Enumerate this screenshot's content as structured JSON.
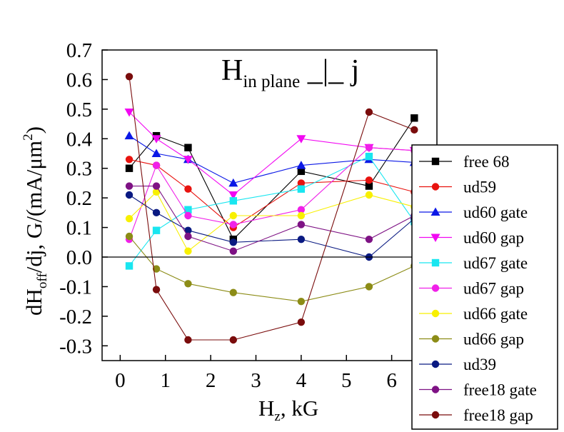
{
  "chart_data": {
    "type": "line",
    "xlabel": {
      "main": "H",
      "sub": "z",
      "tail": ", kG"
    },
    "ylabel": {
      "part1": "dH",
      "sub1": "off",
      "part2": "/dj, G/(mA/μm",
      "sup": "2",
      "part3": ")"
    },
    "title": {
      "main": "H",
      "sub": "in plane",
      "tail": " _|_ j"
    },
    "xlim": [
      -0.4,
      7.0
    ],
    "ylim": [
      -0.35,
      0.7
    ],
    "x_ticks": [
      0,
      1,
      2,
      3,
      4,
      5,
      6
    ],
    "x_tick_labels": [
      "0",
      "1",
      "2",
      "3",
      "4",
      "5",
      "6"
    ],
    "y_ticks": [
      -0.3,
      -0.2,
      -0.1,
      0.0,
      0.1,
      0.2,
      0.3,
      0.4,
      0.5,
      0.6,
      0.7
    ],
    "y_tick_labels": [
      "-0.3",
      "-0.2",
      "-0.1",
      "0.0",
      "0.1",
      "0.2",
      "0.3",
      "0.4",
      "0.5",
      "0.6",
      "0.7"
    ],
    "zero_line": true,
    "grid": false,
    "legend_position": "right",
    "series": [
      {
        "name": "free 68",
        "color": "#000000",
        "marker": "square",
        "points": [
          [
            0.2,
            0.3
          ],
          [
            0.8,
            0.41
          ],
          [
            1.5,
            0.37
          ],
          [
            2.5,
            0.06
          ],
          [
            4.0,
            0.29
          ],
          [
            5.5,
            0.24
          ],
          [
            6.5,
            0.47
          ]
        ]
      },
      {
        "name": "ud59",
        "color": "#e8130f",
        "marker": "circle",
        "points": [
          [
            0.2,
            0.33
          ],
          [
            0.8,
            0.31
          ],
          [
            1.5,
            0.23
          ],
          [
            2.5,
            0.1
          ],
          [
            4.0,
            0.25
          ],
          [
            5.5,
            0.26
          ],
          [
            6.5,
            0.22
          ]
        ]
      },
      {
        "name": "ud60 gate",
        "color": "#0b18e6",
        "marker": "triangle-up",
        "points": [
          [
            0.2,
            0.41
          ],
          [
            0.8,
            0.35
          ],
          [
            1.5,
            0.33
          ],
          [
            2.5,
            0.25
          ],
          [
            4.0,
            0.31
          ],
          [
            5.5,
            0.33
          ],
          [
            6.5,
            0.32
          ]
        ]
      },
      {
        "name": "ud60 gap",
        "color": "#f208f2",
        "marker": "triangle-down",
        "points": [
          [
            0.2,
            0.49
          ],
          [
            0.8,
            0.4
          ],
          [
            1.5,
            0.33
          ],
          [
            2.5,
            0.21
          ],
          [
            4.0,
            0.4
          ],
          [
            5.5,
            0.37
          ],
          [
            6.5,
            0.36
          ]
        ]
      },
      {
        "name": "ud67 gate",
        "color": "#19e6f0",
        "marker": "square",
        "points": [
          [
            0.2,
            -0.03
          ],
          [
            0.8,
            0.09
          ],
          [
            1.5,
            0.16
          ],
          [
            2.5,
            0.19
          ],
          [
            4.0,
            0.23
          ],
          [
            5.5,
            0.34
          ],
          [
            6.5,
            0.12
          ]
        ]
      },
      {
        "name": "ud67 gap",
        "color": "#f020e8",
        "marker": "circle",
        "points": [
          [
            0.2,
            0.06
          ],
          [
            0.8,
            0.31
          ],
          [
            1.5,
            0.14
          ],
          [
            2.5,
            0.11
          ],
          [
            4.0,
            0.16
          ],
          [
            5.5,
            0.37
          ],
          [
            6.5,
            0.36
          ]
        ]
      },
      {
        "name": "ud66 gate",
        "color": "#f8f000",
        "marker": "circle",
        "points": [
          [
            0.2,
            0.13
          ],
          [
            0.8,
            0.22
          ],
          [
            1.5,
            0.02
          ],
          [
            2.5,
            0.14
          ],
          [
            4.0,
            0.14
          ],
          [
            5.5,
            0.21
          ],
          [
            6.5,
            0.17
          ]
        ]
      },
      {
        "name": "ud66 gap",
        "color": "#8c8c16",
        "marker": "circle",
        "points": [
          [
            0.2,
            0.07
          ],
          [
            0.8,
            -0.04
          ],
          [
            1.5,
            -0.09
          ],
          [
            2.5,
            -0.12
          ],
          [
            4.0,
            -0.15
          ],
          [
            5.5,
            -0.1
          ],
          [
            6.5,
            -0.03
          ]
        ]
      },
      {
        "name": "ud39",
        "color": "#0a1a82",
        "marker": "circle",
        "points": [
          [
            0.2,
            0.21
          ],
          [
            0.8,
            0.15
          ],
          [
            1.5,
            0.09
          ],
          [
            2.5,
            0.05
          ],
          [
            4.0,
            0.06
          ],
          [
            5.5,
            0.0
          ],
          [
            6.5,
            0.13
          ]
        ]
      },
      {
        "name": "free18 gate",
        "color": "#7e1284",
        "marker": "circle",
        "points": [
          [
            0.2,
            0.24
          ],
          [
            0.8,
            0.24
          ],
          [
            1.5,
            0.07
          ],
          [
            2.5,
            0.02
          ],
          [
            4.0,
            0.11
          ],
          [
            5.5,
            0.06
          ],
          [
            6.5,
            0.14
          ]
        ]
      },
      {
        "name": "free18 gap",
        "color": "#7a0c0c",
        "marker": "circle",
        "points": [
          [
            0.2,
            0.61
          ],
          [
            0.8,
            -0.11
          ],
          [
            1.5,
            -0.28
          ],
          [
            2.5,
            -0.28
          ],
          [
            4.0,
            -0.22
          ],
          [
            5.5,
            0.49
          ],
          [
            6.5,
            0.43
          ]
        ]
      }
    ]
  }
}
